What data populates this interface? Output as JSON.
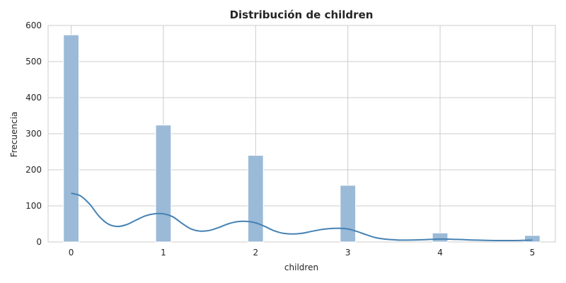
{
  "chart_data": {
    "type": "bar",
    "title": "Distribución de children",
    "xlabel": "children",
    "ylabel": "Frecuencia",
    "xlim": [
      -0.25,
      5.25
    ],
    "ylim": [
      0,
      600
    ],
    "x_ticks": [
      0,
      1,
      2,
      3,
      4,
      5
    ],
    "y_ticks": [
      0,
      100,
      200,
      300,
      400,
      500,
      600
    ],
    "grid": true,
    "bar_color": "#9bbad7",
    "line_color": "#4682b4",
    "bin_width": 0.1667,
    "bars": [
      {
        "x": 0,
        "value": 574
      },
      {
        "x": 1,
        "value": 324
      },
      {
        "x": 2,
        "value": 240
      },
      {
        "x": 3,
        "value": 157
      },
      {
        "x": 4,
        "value": 25
      },
      {
        "x": 5,
        "value": 18
      }
    ],
    "kde": {
      "x": [
        0,
        0.1,
        0.2,
        0.3,
        0.4,
        0.5,
        0.6,
        0.7,
        0.8,
        0.9,
        1.0,
        1.1,
        1.2,
        1.3,
        1.4,
        1.5,
        1.6,
        1.7,
        1.8,
        1.9,
        2.0,
        2.1,
        2.2,
        2.3,
        2.4,
        2.5,
        2.6,
        2.7,
        2.8,
        2.9,
        3.0,
        3.1,
        3.2,
        3.3,
        3.4,
        3.5,
        3.6,
        3.8,
        4.0,
        4.2,
        4.4,
        4.6,
        4.8,
        5.0
      ],
      "y": [
        135,
        128,
        105,
        72,
        50,
        43,
        48,
        60,
        72,
        78,
        78,
        70,
        52,
        36,
        30,
        32,
        40,
        50,
        56,
        57,
        53,
        43,
        31,
        24,
        22,
        24,
        29,
        34,
        37,
        38,
        36,
        29,
        20,
        12,
        8,
        6,
        5,
        6,
        8,
        7,
        5,
        4,
        4,
        5
      ]
    }
  }
}
